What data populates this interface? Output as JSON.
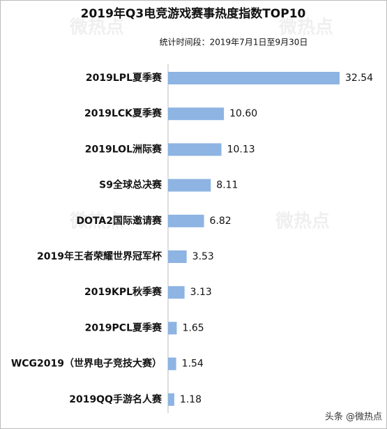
{
  "chart_data": {
    "type": "barh",
    "title": "2019年Q3电竞游戏赛事热度指数TOP10",
    "subtitle": "统计时间段：2019年7月1日至9月30日",
    "categories": [
      "2019LPL夏季赛",
      "2019LCK夏季赛",
      "2019LOL洲际赛",
      "S9全球总决赛",
      "DOTA2国际邀请赛",
      "2019年王者荣耀世界冠军杯",
      "2019KPL秋季赛",
      "2019PCL夏季赛",
      "WCG2019（世界电子竞技大赛）",
      "2019QQ手游名人赛"
    ],
    "values": [
      32.54,
      10.6,
      10.13,
      8.11,
      6.82,
      3.53,
      3.13,
      1.65,
      1.54,
      1.18
    ],
    "value_labels": [
      "32.54",
      "10.60",
      "10.13",
      "8.11",
      "6.82",
      "3.53",
      "3.13",
      "1.65",
      "1.54",
      "1.18"
    ],
    "color": "#8db4e2",
    "watermark": "微热点",
    "source": "头条 @微热点"
  }
}
